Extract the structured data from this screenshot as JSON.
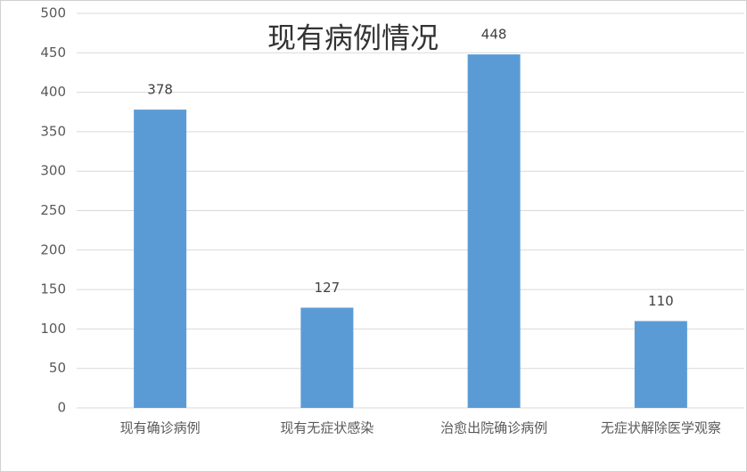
{
  "chart_data": {
    "type": "bar",
    "title": "现有病例情况",
    "categories": [
      "现有确诊病例",
      "现有无症状感染",
      "治愈出院确诊病例",
      "无症状解除医学观察"
    ],
    "values": [
      378,
      127,
      448,
      110
    ],
    "color": "#5b9bd5",
    "ylim": [
      0,
      500
    ],
    "yticks": [
      0,
      50,
      100,
      150,
      200,
      250,
      300,
      350,
      400,
      450,
      500
    ],
    "grid": true
  }
}
